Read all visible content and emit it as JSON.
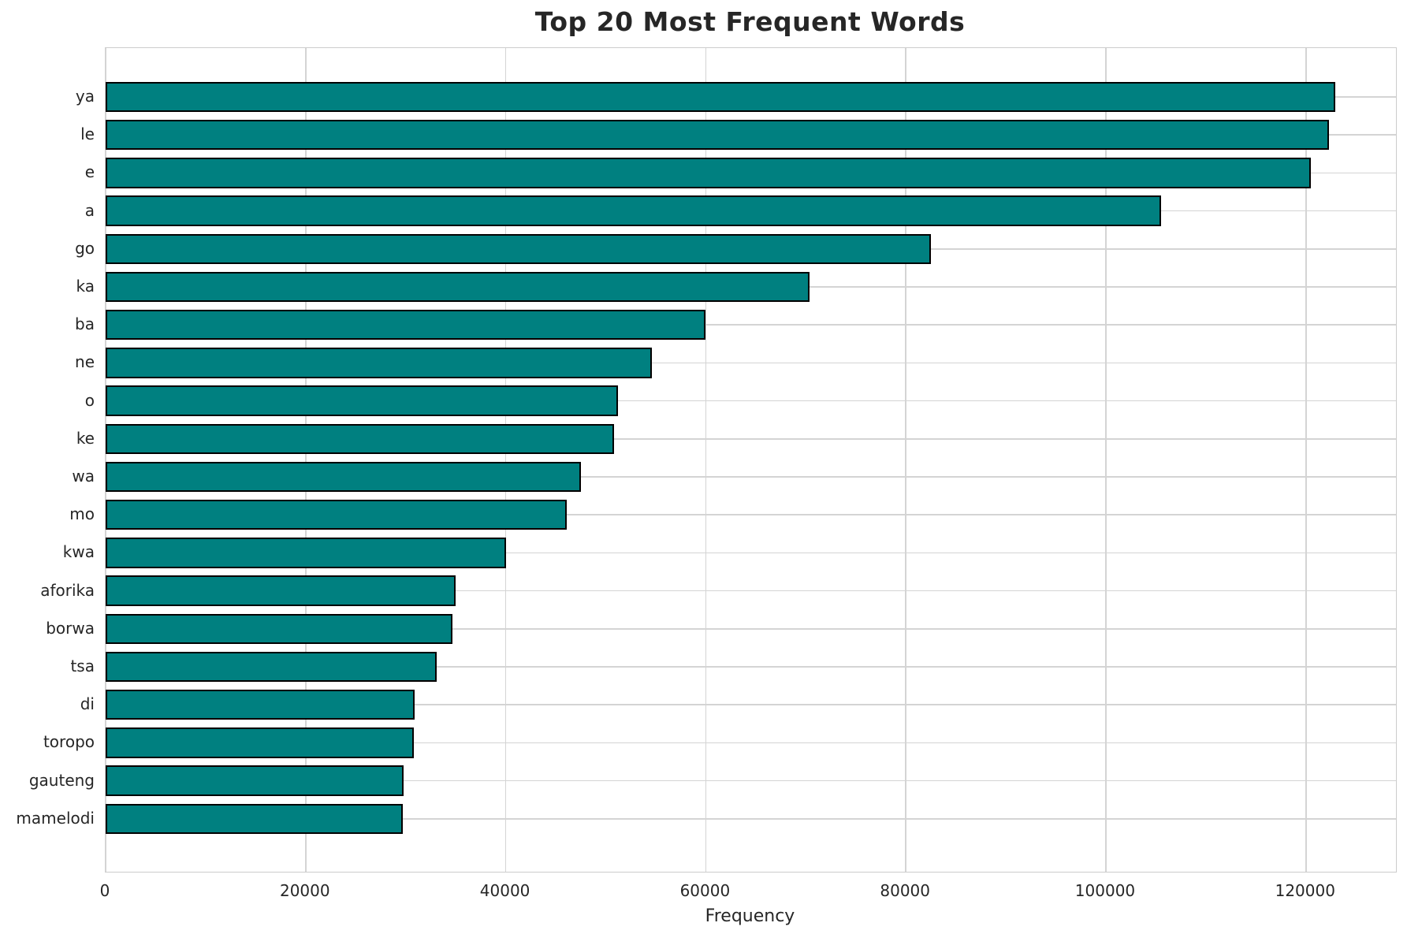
{
  "title": "Top 20 Most Frequent Words",
  "chart_data": {
    "type": "bar",
    "orientation": "horizontal",
    "title": "Top 20 Most Frequent Words",
    "xlabel": "Frequency",
    "ylabel": "",
    "categories": [
      "ya",
      "le",
      "e",
      "a",
      "go",
      "ka",
      "ba",
      "ne",
      "o",
      "ke",
      "wa",
      "mo",
      "kwa",
      "aforika",
      "borwa",
      "tsa",
      "di",
      "toropo",
      "gauteng",
      "mamelodi"
    ],
    "values": [
      122900,
      122300,
      120500,
      105500,
      82500,
      70400,
      60000,
      54600,
      51200,
      50800,
      47500,
      46100,
      40000,
      35000,
      34700,
      33100,
      30900,
      30800,
      29800,
      29700
    ],
    "xticks": [
      0,
      20000,
      40000,
      60000,
      80000,
      100000,
      120000
    ],
    "xtick_labels": [
      "0",
      "20000",
      "40000",
      "60000",
      "80000",
      "100000",
      "120000"
    ],
    "xlim": [
      0,
      129000
    ],
    "grid": true,
    "legend": false,
    "bar_color": "#008080",
    "bar_edge_color": "#000000",
    "grid_color": "#d4d4d4",
    "spine_color": "#cccccc",
    "text_color": "#262626",
    "background_color": "#ffffff"
  }
}
